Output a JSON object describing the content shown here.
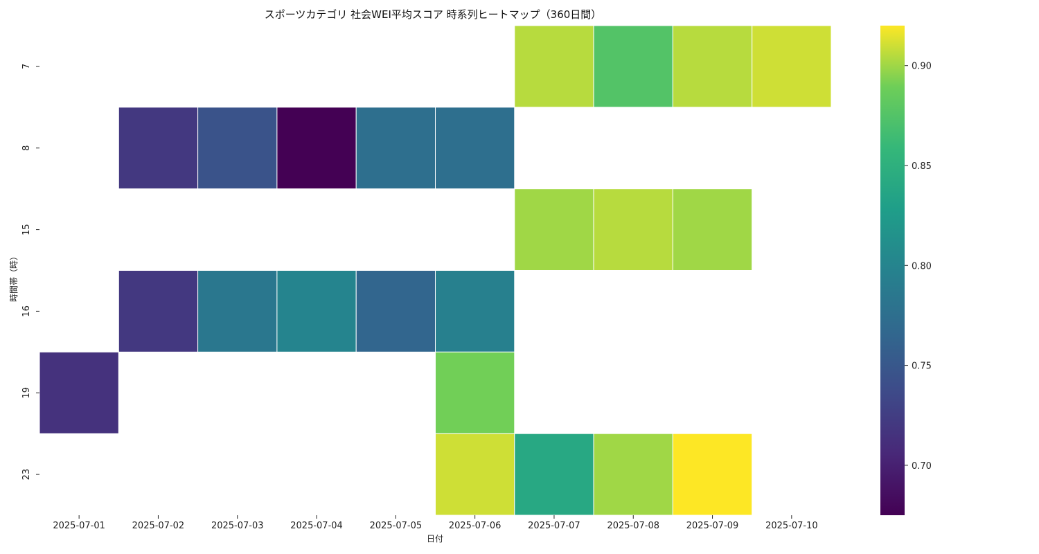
{
  "chart_data": {
    "type": "heatmap",
    "title": "スポーツカテゴリ 社会WEI平均スコア 時系列ヒートマップ（360日間）",
    "xlabel": "日付",
    "ylabel": "時間帯（時）",
    "x": [
      "2025-07-01",
      "2025-07-02",
      "2025-07-03",
      "2025-07-04",
      "2025-07-05",
      "2025-07-06",
      "2025-07-07",
      "2025-07-08",
      "2025-07-09",
      "2025-07-10"
    ],
    "y": [
      "7",
      "8",
      "15",
      "16",
      "19",
      "23"
    ],
    "values": [
      [
        null,
        null,
        null,
        null,
        null,
        null,
        0.905,
        0.875,
        0.905,
        0.91
      ],
      [
        null,
        0.72,
        0.745,
        0.675,
        0.775,
        0.775,
        null,
        null,
        null,
        null
      ],
      [
        null,
        null,
        null,
        null,
        null,
        null,
        0.9,
        0.905,
        0.9,
        null
      ],
      [
        null,
        0.72,
        0.785,
        0.8,
        0.765,
        0.795,
        null,
        null,
        null,
        null
      ],
      [
        0.715,
        null,
        null,
        null,
        null,
        0.89,
        null,
        null,
        null,
        null
      ],
      [
        null,
        null,
        null,
        null,
        null,
        0.91,
        0.84,
        0.9,
        0.92,
        null
      ]
    ],
    "colorbar": {
      "colormap": "viridis",
      "vmin": 0.675,
      "vmax": 0.92,
      "ticks": [
        "0.70",
        "0.75",
        "0.80",
        "0.85",
        "0.90"
      ]
    }
  }
}
